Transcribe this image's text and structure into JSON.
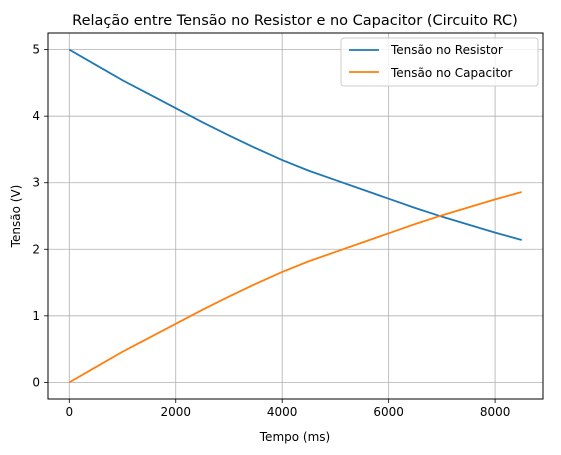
{
  "chart_data": {
    "type": "line",
    "title": "Relação entre Tensão no Resistor e no Capacitor (Circuito RC)",
    "xlabel": "Tempo (ms)",
    "ylabel": "Tensão (V)",
    "xlim": [
      -400,
      8900
    ],
    "ylim": [
      -0.25,
      5.25
    ],
    "xticks": [
      0,
      2000,
      4000,
      6000,
      8000
    ],
    "yticks": [
      0,
      1,
      2,
      3,
      4,
      5
    ],
    "grid": true,
    "legend_position": "top-right",
    "x": [
      0,
      500,
      1000,
      1500,
      2000,
      2500,
      3000,
      3500,
      4000,
      4500,
      5000,
      5500,
      6000,
      6500,
      7000,
      7500,
      8000,
      8500
    ],
    "series": [
      {
        "name": "Tensão no Resistor",
        "color": "#1f77b4",
        "values": [
          5.0,
          4.77,
          4.54,
          4.33,
          4.12,
          3.91,
          3.71,
          3.52,
          3.34,
          3.18,
          3.04,
          2.9,
          2.76,
          2.62,
          2.49,
          2.37,
          2.25,
          2.14
        ]
      },
      {
        "name": "Tensão no Capacitor",
        "color": "#ff7f0e",
        "values": [
          0.0,
          0.23,
          0.46,
          0.67,
          0.88,
          1.09,
          1.29,
          1.48,
          1.66,
          1.82,
          1.96,
          2.1,
          2.24,
          2.38,
          2.51,
          2.63,
          2.75,
          2.86
        ]
      }
    ]
  }
}
